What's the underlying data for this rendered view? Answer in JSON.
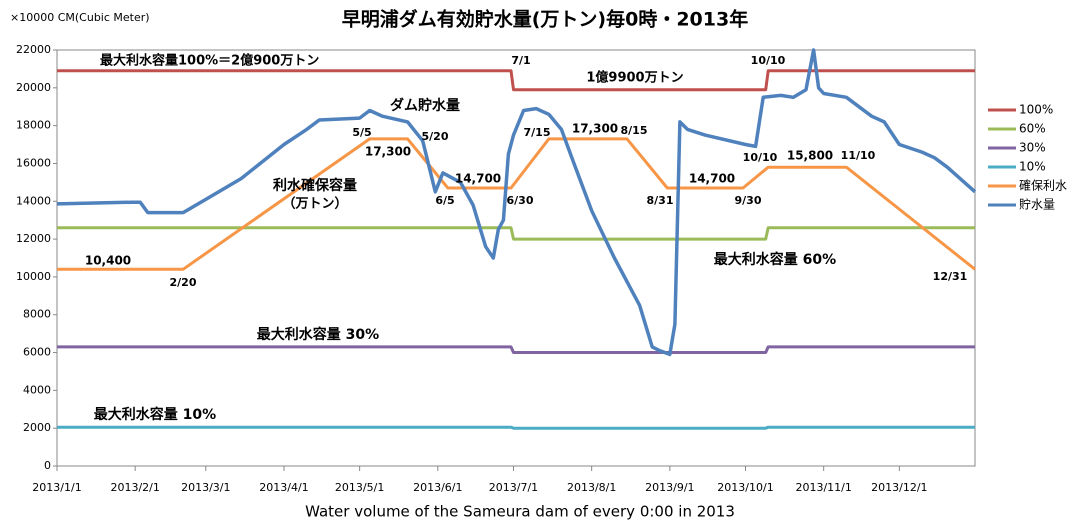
{
  "chart_data": {
    "type": "line",
    "title": "早明浦ダム有効貯水量(万トン)毎0時・2013年",
    "y_unit": "×10000 CM(Cubic Meter)",
    "x_label": "Water volume of the Sameura dam of every 0:00 in 2013",
    "xlim": [
      "2013/1/1",
      "2013/12/31"
    ],
    "xticks": [
      "2013/1/1",
      "2013/2/1",
      "2013/3/1",
      "2013/4/1",
      "2013/5/1",
      "2013/6/1",
      "2013/7/1",
      "2013/8/1",
      "2013/9/1",
      "2013/10/1",
      "2013/11/1",
      "2013/12/1"
    ],
    "ylim": [
      0,
      22000
    ],
    "yticks": [
      0,
      2000,
      4000,
      6000,
      8000,
      10000,
      12000,
      14000,
      16000,
      18000,
      20000,
      22000
    ],
    "grid": false,
    "legend": "right",
    "series": [
      {
        "name": "100%",
        "color": "#c0504d",
        "x": [
          "2013/1/1",
          "2013/6/30",
          "2013/7/1",
          "2013/10/9",
          "2013/10/10",
          "2013/12/31"
        ],
        "values": [
          20900,
          20900,
          19900,
          19900,
          20900,
          20900
        ]
      },
      {
        "name": "60%",
        "color": "#9bbb59",
        "x": [
          "2013/1/1",
          "2013/6/30",
          "2013/7/1",
          "2013/10/9",
          "2013/10/10",
          "2013/12/31"
        ],
        "values": [
          12600,
          12600,
          12000,
          12000,
          12600,
          12600
        ]
      },
      {
        "name": "30%",
        "color": "#8064a2",
        "x": [
          "2013/1/1",
          "2013/6/30",
          "2013/7/1",
          "2013/10/9",
          "2013/10/10",
          "2013/12/31"
        ],
        "values": [
          6300,
          6300,
          6000,
          6000,
          6300,
          6300
        ]
      },
      {
        "name": "10%",
        "color": "#4bacc6",
        "x": [
          "2013/1/1",
          "2013/6/30",
          "2013/7/1",
          "2013/10/9",
          "2013/10/10",
          "2013/12/31"
        ],
        "values": [
          2050,
          2050,
          2000,
          2000,
          2050,
          2050
        ]
      },
      {
        "name": "確保利水",
        "color": "#f79646",
        "x": [
          "2013/1/1",
          "2013/2/20",
          "2013/5/5",
          "2013/5/20",
          "2013/6/5",
          "2013/6/30",
          "2013/7/15",
          "2013/8/15",
          "2013/8/31",
          "2013/9/30",
          "2013/10/10",
          "2013/11/10",
          "2013/12/31"
        ],
        "values": [
          10400,
          10400,
          17300,
          17300,
          14700,
          14700,
          17300,
          17300,
          14700,
          14700,
          15800,
          15800,
          10400
        ]
      },
      {
        "name": "貯水量",
        "color": "#4f81bd",
        "x": [
          "2013/1/1",
          "2013/1/31",
          "2013/2/3",
          "2013/2/6",
          "2013/2/20",
          "2013/3/1",
          "2013/3/15",
          "2013/4/1",
          "2013/4/10",
          "2013/4/15",
          "2013/5/1",
          "2013/5/5",
          "2013/5/10",
          "2013/5/20",
          "2013/5/26",
          "2013/5/31",
          "2013/6/3",
          "2013/6/10",
          "2013/6/15",
          "2013/6/20",
          "2013/6/23",
          "2013/6/25",
          "2013/6/27",
          "2013/6/29",
          "2013/7/1",
          "2013/7/5",
          "2013/7/10",
          "2013/7/15",
          "2013/7/20",
          "2013/7/25",
          "2013/8/1",
          "2013/8/10",
          "2013/8/20",
          "2013/8/25",
          "2013/8/28",
          "2013/9/1",
          "2013/9/3",
          "2013/9/5",
          "2013/9/8",
          "2013/9/15",
          "2013/10/1",
          "2013/10/5",
          "2013/10/8",
          "2013/10/15",
          "2013/10/20",
          "2013/10/25",
          "2013/10/28",
          "2013/10/30",
          "2013/11/1",
          "2013/11/10",
          "2013/11/20",
          "2013/11/25",
          "2013/12/1",
          "2013/12/10",
          "2013/12/15",
          "2013/12/20",
          "2013/12/31"
        ],
        "values": [
          13860,
          13950,
          13950,
          13400,
          13400,
          14100,
          15200,
          17000,
          17800,
          18300,
          18400,
          18800,
          18500,
          18200,
          17200,
          14500,
          15500,
          15000,
          13800,
          11600,
          11000,
          12500,
          13000,
          16500,
          17500,
          18800,
          18900,
          18600,
          17800,
          16000,
          13500,
          11000,
          8500,
          6300,
          6100,
          5900,
          7500,
          18200,
          17800,
          17500,
          17000,
          16900,
          19500,
          19600,
          19500,
          19900,
          22000,
          20000,
          19700,
          19500,
          18500,
          18200,
          17000,
          16600,
          16300,
          15800,
          14500
        ]
      }
    ],
    "annotations": [
      "最大利水容量100%＝2億900万トン",
      "7/1",
      "10/10",
      "1億9900万トン",
      "ダム貯水量",
      "5/5",
      "5/20",
      "17,300",
      "7/15",
      "17,300",
      "8/15",
      "10/10",
      "15,800",
      "11/10",
      "利水確保容量",
      "（万トン）",
      "14,700",
      "6/5",
      "6/30",
      "14,700",
      "8/31",
      "9/30",
      "10,400",
      "2/20",
      "最大利水容量 60%",
      "12/31",
      "最大利水容量 30%",
      "最大利水容量 10%"
    ]
  }
}
